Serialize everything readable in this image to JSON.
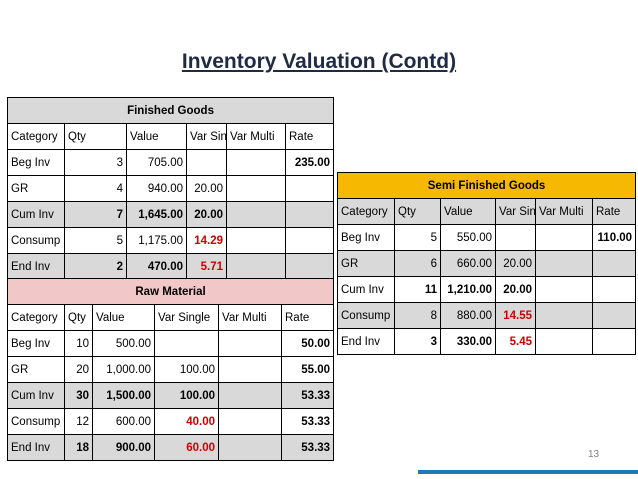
{
  "title": "Inventory Valuation (Contd)",
  "page_number": "13",
  "finished_goods": {
    "heading": "Finished Goods",
    "headers": [
      "Category",
      "Qty",
      "Value",
      "Var Sing",
      "Var Multi",
      "Rate"
    ],
    "rows": [
      [
        "Beg Inv",
        "3",
        "705.00",
        "",
        "",
        "235.00"
      ],
      [
        "GR",
        "4",
        "940.00",
        "20.00",
        "",
        ""
      ],
      [
        "Cum Inv",
        "7",
        "1,645.00",
        "20.00",
        "",
        ""
      ],
      [
        "Consump",
        "5",
        "1,175.00",
        "14.29",
        "",
        ""
      ],
      [
        "End Inv",
        "2",
        "470.00",
        "5.71",
        "",
        ""
      ]
    ]
  },
  "raw_material": {
    "heading": "Raw Material",
    "headers": [
      "Category",
      "Qty",
      "Value",
      "Var Single",
      "Var Multi",
      "Rate"
    ],
    "rows": [
      [
        "Beg Inv",
        "10",
        "500.00",
        "",
        "",
        "50.00"
      ],
      [
        "GR",
        "20",
        "1,000.00",
        "100.00",
        "",
        "55.00"
      ],
      [
        "Cum Inv",
        "30",
        "1,500.00",
        "100.00",
        "",
        "53.33"
      ],
      [
        "Consump",
        "12",
        "600.00",
        "40.00",
        "",
        "53.33"
      ],
      [
        "End Inv",
        "18",
        "900.00",
        "60.00",
        "",
        "53.33"
      ]
    ]
  },
  "semi_finished_goods": {
    "heading": "Semi Finished Goods",
    "headers": [
      "Category",
      "Qty",
      "Value",
      "Var Sing",
      "Var Multi",
      "Rate"
    ],
    "rows": [
      [
        "Beg Inv",
        "5",
        "550.00",
        "",
        "",
        "110.00"
      ],
      [
        "GR",
        "6",
        "660.00",
        "20.00",
        "",
        ""
      ],
      [
        "Cum Inv",
        "11",
        "1,210.00",
        "20.00",
        "",
        ""
      ],
      [
        "Consump",
        "8",
        "880.00",
        "14.55",
        "",
        ""
      ],
      [
        "End Inv",
        "3",
        "330.00",
        "5.45",
        "",
        ""
      ]
    ]
  }
}
